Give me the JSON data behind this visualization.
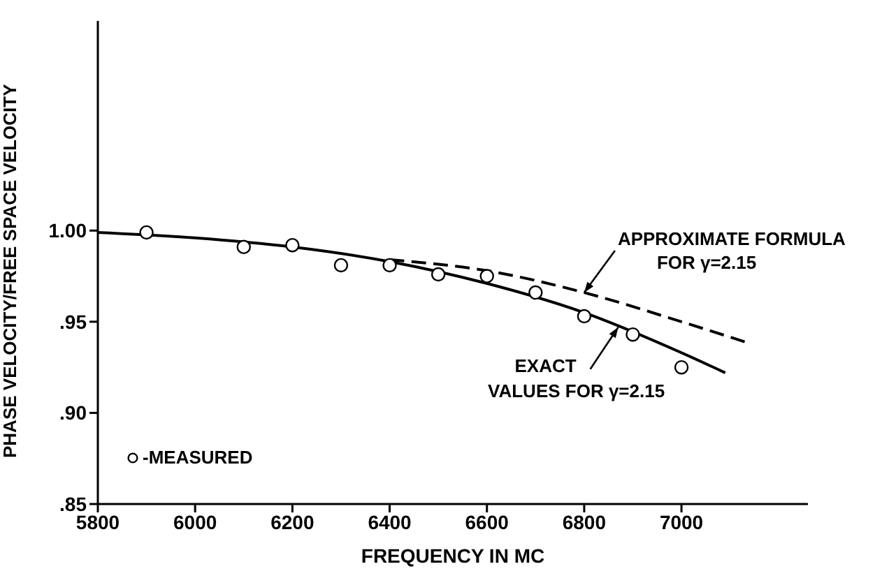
{
  "chart_data": {
    "type": "line",
    "xlabel": "FREQUENCY IN MC",
    "ylabel": "PHASE VELOCITY/FREE SPACE VELOCITY",
    "xlim": [
      5800,
      7260
    ],
    "xticks": [
      5800,
      6000,
      6200,
      6400,
      6600,
      6800,
      7000
    ],
    "ylim": [
      0.85,
      1.115
    ],
    "yticks": [
      {
        "value": 0.85,
        "label": ".85"
      },
      {
        "value": 0.9,
        "label": ".90"
      },
      {
        "value": 0.95,
        "label": ".95"
      },
      {
        "value": 1.0,
        "label": "1.00"
      }
    ],
    "grid": false,
    "legend": "bottom left",
    "series": [
      {
        "color": "#000000",
        "line_style": "solid",
        "marker": "none",
        "x": [
          5800,
          6000,
          6200,
          6400,
          6600,
          6800,
          7000,
          7090
        ],
        "values": [
          0.999,
          0.996,
          0.991,
          0.983,
          0.971,
          0.955,
          0.933,
          0.922
        ]
      },
      {
        "color": "#000000",
        "line_style": "dashed",
        "marker": "none",
        "x": [
          6400,
          6600,
          6800,
          7000,
          7130
        ],
        "values": [
          0.984,
          0.978,
          0.966,
          0.95,
          0.939
        ]
      },
      {
        "type": "scatter",
        "name": "-MEASURED",
        "color": "#000000",
        "marker": "circle",
        "x": [
          5900,
          6100,
          6200,
          6300,
          6400,
          6500,
          6600,
          6700,
          6800,
          6900,
          7000
        ],
        "values": [
          0.999,
          0.991,
          0.992,
          0.981,
          0.981,
          0.976,
          0.975,
          0.966,
          0.953,
          0.943,
          0.925
        ]
      }
    ],
    "annotations": [
      {
        "text": "APPROXIMATE FORMULA\nFOR γ=2.15",
        "x": 6800,
        "y": 0.966
      },
      {
        "text": "EXACT\nVALUES FOR γ=2.15",
        "x": 6870,
        "y": 0.947
      }
    ]
  }
}
